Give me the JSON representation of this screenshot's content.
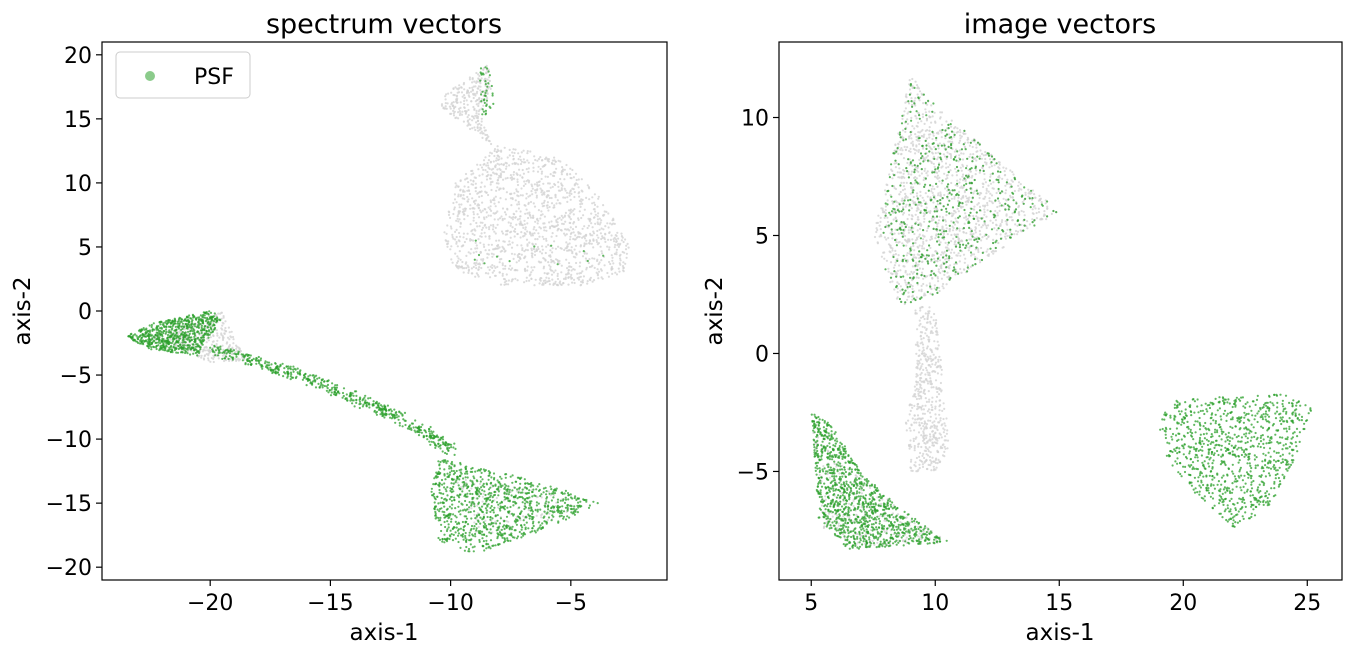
{
  "chart_data": [
    {
      "type": "scatter",
      "title": "spectrum vectors",
      "xlabel": "axis-1",
      "ylabel": "axis-2",
      "xlim": [
        -24.5,
        -1.0
      ],
      "ylim": [
        -21.0,
        21.0
      ],
      "xticks": [
        -20,
        -15,
        -10,
        -5
      ],
      "xtick_labels": [
        "−20",
        "−15",
        "−10",
        "−5"
      ],
      "yticks": [
        20,
        15,
        10,
        5,
        0,
        -5,
        -10,
        -15,
        -20
      ],
      "ytick_labels": [
        "20",
        "15",
        "10",
        "5",
        "0",
        "−5",
        "−10",
        "−15",
        "−20"
      ],
      "grid": false,
      "legend": {
        "placement": "top-left",
        "entries": [
          "PSF"
        ]
      },
      "series": [
        {
          "name": "",
          "color": "#d3d3d3",
          "clusters": [
            {
              "shape": "poly",
              "points": [
                [
                  -9.8,
                  10
                ],
                [
                  -8,
                  13
                ],
                [
                  -5.5,
                  12
                ],
                [
                  -3.8,
                  9
                ],
                [
                  -2.5,
                  5
                ],
                [
                  -2.8,
                  3
                ],
                [
                  -4.5,
                  2
                ],
                [
                  -8,
                  2
                ],
                [
                  -9.8,
                  3
                ],
                [
                  -10.3,
                  6
                ]
              ],
              "n": 1400
            },
            {
              "shape": "poly",
              "points": [
                [
                  -10.2,
                  17
                ],
                [
                  -8.5,
                  19.2
                ],
                [
                  -8.2,
                  18
                ],
                [
                  -8.7,
                  15
                ],
                [
                  -8.3,
                  13
                ],
                [
                  -9.5,
                  14.5
                ],
                [
                  -10.4,
                  16
                ]
              ],
              "n": 250
            },
            {
              "shape": "poly",
              "points": [
                [
                  -22.5,
                  -2
                ],
                [
                  -21,
                  -1
                ],
                [
                  -19.5,
                  0
                ],
                [
                  -19,
                  -2
                ],
                [
                  -18.5,
                  -4
                ],
                [
                  -20,
                  -4
                ]
              ],
              "n": 300
            },
            {
              "shape": "poly",
              "points": [
                [
                  -10,
                  -13
                ],
                [
                  -6,
                  -14
                ],
                [
                  -4.5,
                  -15.5
                ],
                [
                  -7,
                  -17
                ],
                [
                  -9,
                  -17.5
                ]
              ],
              "n": 120
            }
          ]
        },
        {
          "name": "PSF",
          "color": "#2ca02c",
          "clusters": [
            {
              "shape": "poly",
              "points": [
                [
                  -23.5,
                  -2
                ],
                [
                  -22.5,
                  -1
                ],
                [
                  -20,
                  0
                ],
                [
                  -19.5,
                  -0.5
                ],
                [
                  -20.5,
                  -3.5
                ],
                [
                  -22.5,
                  -3
                ]
              ],
              "n": 700
            },
            {
              "shape": "band",
              "points": [
                [
                  -20,
                  -3
                ],
                [
                  -18,
                  -4
                ],
                [
                  -16,
                  -5.2
                ],
                [
                  -14,
                  -6.8
                ],
                [
                  -12.5,
                  -8
                ],
                [
                  -11,
                  -9.5
                ],
                [
                  -10,
                  -10.8
                ]
              ],
              "width": 0.9,
              "n": 550
            },
            {
              "shape": "poly",
              "points": [
                [
                  -10.5,
                  -11.5
                ],
                [
                  -8,
                  -12.5
                ],
                [
                  -5.5,
                  -13.8
                ],
                [
                  -3.8,
                  -15
                ],
                [
                  -6,
                  -17
                ],
                [
                  -9,
                  -19
                ],
                [
                  -10.5,
                  -18
                ],
                [
                  -10.8,
                  -14
                ]
              ],
              "n": 950
            },
            {
              "shape": "poly",
              "points": [
                [
                  -8.8,
                  19.2
                ],
                [
                  -8.3,
                  19
                ],
                [
                  -8.2,
                  16
                ],
                [
                  -8.7,
                  15
                ]
              ],
              "n": 40
            },
            {
              "shape": "poly",
              "points": [
                [
                  -10,
                  6
                ],
                [
                  -5,
                  5
                ],
                [
                  -3,
                  4
                ],
                [
                  -5,
                  3
                ],
                [
                  -9,
                  3
                ]
              ],
              "n": 12
            }
          ]
        }
      ]
    },
    {
      "type": "scatter",
      "title": "image vectors",
      "xlabel": "axis-1",
      "ylabel": "axis-2",
      "xlim": [
        3.7,
        26.4
      ],
      "ylim": [
        -9.6,
        13.2
      ],
      "xticks": [
        5,
        10,
        15,
        20,
        25
      ],
      "xtick_labels": [
        "5",
        "10",
        "15",
        "20",
        "25"
      ],
      "yticks": [
        10,
        5,
        0,
        -5
      ],
      "ytick_labels": [
        "10",
        "5",
        "0",
        "−5"
      ],
      "grid": false,
      "series": [
        {
          "name": "",
          "color": "#d3d3d3",
          "clusters": [
            {
              "shape": "poly",
              "points": [
                [
                  8,
                  7
                ],
                [
                  9,
                  11.8
                ],
                [
                  10,
                  10.5
                ],
                [
                  15,
                  6
                ],
                [
                  12,
                  4
                ],
                [
                  10,
                  2.5
                ],
                [
                  8.5,
                  2
                ],
                [
                  7.5,
                  5
                ]
              ],
              "n": 1700
            },
            {
              "shape": "poly",
              "points": [
                [
                  9.2,
                  2
                ],
                [
                  10,
                  2
                ],
                [
                  10.3,
                  -1
                ],
                [
                  10.6,
                  -4
                ],
                [
                  10,
                  -5
                ],
                [
                  9,
                  -5
                ],
                [
                  8.8,
                  -3
                ],
                [
                  9.2,
                  -1
                ]
              ],
              "n": 500
            },
            {
              "shape": "poly",
              "points": [
                [
                  5,
                  -3
                ],
                [
                  6,
                  -4.5
                ],
                [
                  8.5,
                  -6.5
                ],
                [
                  10.5,
                  -8
                ],
                [
                  7,
                  -8.2
                ],
                [
                  5.5,
                  -7.5
                ]
              ],
              "n": 250
            }
          ]
        },
        {
          "name": "PSF",
          "color": "#2ca02c",
          "clusters": [
            {
              "shape": "poly",
              "points": [
                [
                  8,
                  7
                ],
                [
                  9,
                  11.8
                ],
                [
                  10,
                  10.5
                ],
                [
                  15,
                  6
                ],
                [
                  12,
                  4
                ],
                [
                  10,
                  2.5
                ],
                [
                  8.5,
                  2
                ],
                [
                  7.5,
                  5
                ]
              ],
              "n": 500
            },
            {
              "shape": "poly",
              "points": [
                [
                  5,
                  -2.5
                ],
                [
                  5.8,
                  -3
                ],
                [
                  7,
                  -5
                ],
                [
                  8.5,
                  -6.5
                ],
                [
                  10.6,
                  -8
                ],
                [
                  6.5,
                  -8.3
                ],
                [
                  5.3,
                  -7
                ]
              ],
              "n": 1100
            },
            {
              "shape": "poly",
              "points": [
                [
                  19,
                  -3
                ],
                [
                  19.5,
                  -2
                ],
                [
                  22,
                  -1.8
                ],
                [
                  24,
                  -1.7
                ],
                [
                  25.2,
                  -2.3
                ],
                [
                  24.5,
                  -4.5
                ],
                [
                  23.5,
                  -6.5
                ],
                [
                  22,
                  -7.4
                ],
                [
                  20.5,
                  -6
                ],
                [
                  19.3,
                  -4.5
                ]
              ],
              "n": 950
            }
          ]
        }
      ]
    }
  ]
}
